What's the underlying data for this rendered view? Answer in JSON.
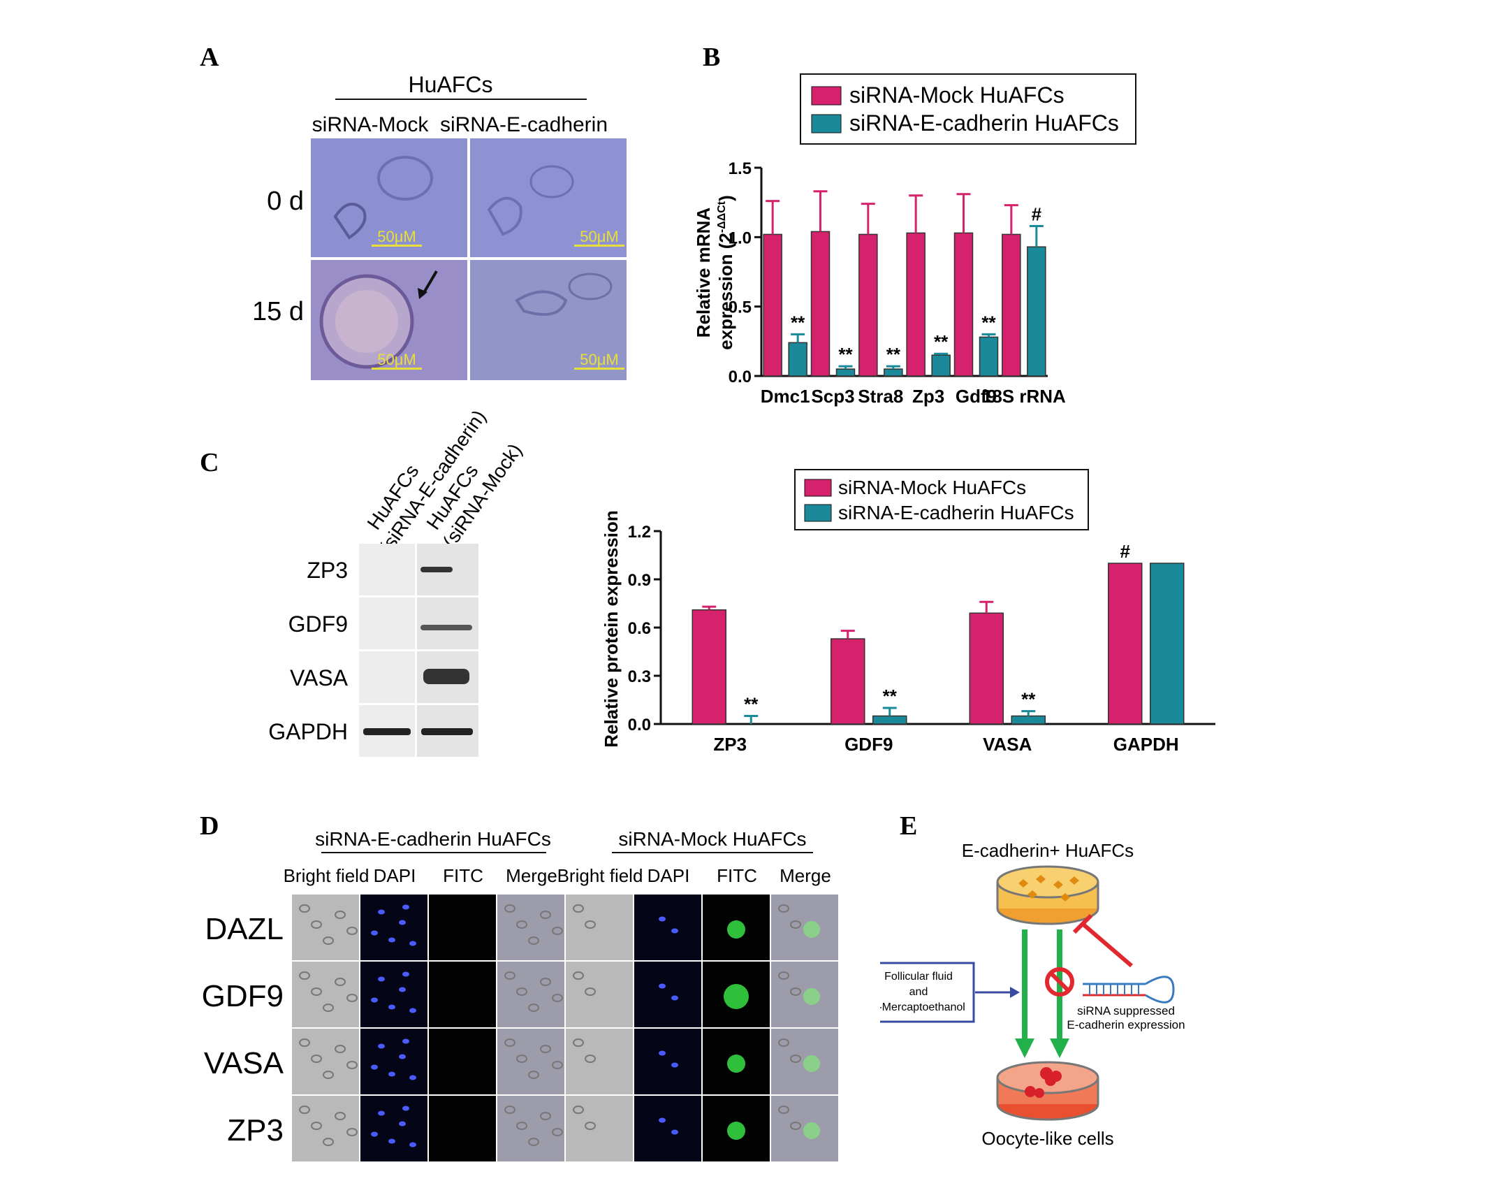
{
  "panels": {
    "A": {
      "letter": "A",
      "group_label": "HuAFCs",
      "col_labels": [
        "siRNA-Mock",
        "siRNA-E-cadherin"
      ],
      "row_labels": [
        "0 d",
        "15 d"
      ],
      "scale_bar": "50μM"
    },
    "B": {
      "letter": "B"
    },
    "C": {
      "letter": "C",
      "lane_labels": [
        [
          "HuAFCs",
          "(siRNA-E-cadherin)"
        ],
        [
          "HuAFCs",
          "(siRNA-Mock)"
        ]
      ],
      "blot_rows": [
        "ZP3",
        "GDF9",
        "VASA",
        "GAPDH"
      ]
    },
    "D": {
      "letter": "D",
      "groups": [
        "siRNA-E-cadherin HuAFCs",
        "siRNA-Mock HuAFCs"
      ],
      "columns": [
        "Bright field",
        "DAPI",
        "FITC",
        "Merge",
        "Bright field",
        "DAPI",
        "FITC",
        "Merge"
      ],
      "rows": [
        "DAZL",
        "GDF9",
        "VASA",
        "ZP3"
      ]
    },
    "E": {
      "letter": "E",
      "top_label": "E-cadherin+ HuAFCs",
      "box_lines": [
        "Follicular fluid",
        "and",
        "β-Mercaptoethanol"
      ],
      "sirna_lines": [
        "siRNA suppressed",
        "E-cadherin expression"
      ],
      "bottom_label": "Oocyte-like cells"
    }
  },
  "colors": {
    "mock": "#d6216c",
    "ecad": "#1a8a9a",
    "scale": "#e8e038",
    "green_arrow": "#22b04a",
    "red": "#e0282e",
    "box_border": "#3a4aa0"
  },
  "chart_data": [
    {
      "type": "bar",
      "title": "",
      "ylabel_line1": "Relative mRNA",
      "ylabel_line2": "expression (2",
      "ylabel_sup": "-ΔΔCt",
      "ylabel_close": ")",
      "xlabel": "",
      "ylim": [
        0,
        1.5
      ],
      "yticks": [
        "0.0",
        "0.5",
        "1.0",
        "1.5"
      ],
      "categories": [
        "Dmc1",
        "Scp3",
        "Stra8",
        "Zp3",
        "Gdf9",
        "18S rRNA"
      ],
      "legend_position": "top",
      "series": [
        {
          "name": "siRNA-Mock HuAFCs",
          "values": [
            1.02,
            1.04,
            1.02,
            1.03,
            1.03,
            1.02
          ],
          "errors": [
            0.24,
            0.29,
            0.22,
            0.27,
            0.28,
            0.21
          ]
        },
        {
          "name": "siRNA-E-cadherin HuAFCs",
          "values": [
            0.24,
            0.05,
            0.05,
            0.15,
            0.28,
            0.93
          ],
          "errors": [
            0.06,
            0.02,
            0.02,
            0.01,
            0.02,
            0.15
          ]
        }
      ],
      "annotations": [
        "**",
        "**",
        "**",
        "**",
        "**",
        "#"
      ],
      "annotation_series": [
        1,
        1,
        1,
        1,
        1,
        1
      ]
    },
    {
      "type": "bar",
      "title": "",
      "ylabel": "Relative protein expression",
      "xlabel": "",
      "ylim": [
        0,
        1.2
      ],
      "yticks": [
        "0.0",
        "0.3",
        "0.6",
        "0.9",
        "1.2"
      ],
      "categories": [
        "ZP3",
        "GDF9",
        "VASA",
        "GAPDH"
      ],
      "legend_position": "top",
      "series": [
        {
          "name": "siRNA-Mock HuAFCs",
          "values": [
            0.71,
            0.53,
            0.69,
            1.0
          ],
          "errors": [
            0.02,
            0.05,
            0.07,
            0
          ]
        },
        {
          "name": "siRNA-E-cadherin HuAFCs",
          "values": [
            0.0,
            0.05,
            0.05,
            1.0
          ],
          "errors": [
            0.05,
            0.05,
            0.03,
            0
          ]
        }
      ],
      "annotations": [
        "**",
        "**",
        "**",
        "#"
      ],
      "annotation_series": [
        1,
        1,
        1,
        0
      ]
    }
  ]
}
